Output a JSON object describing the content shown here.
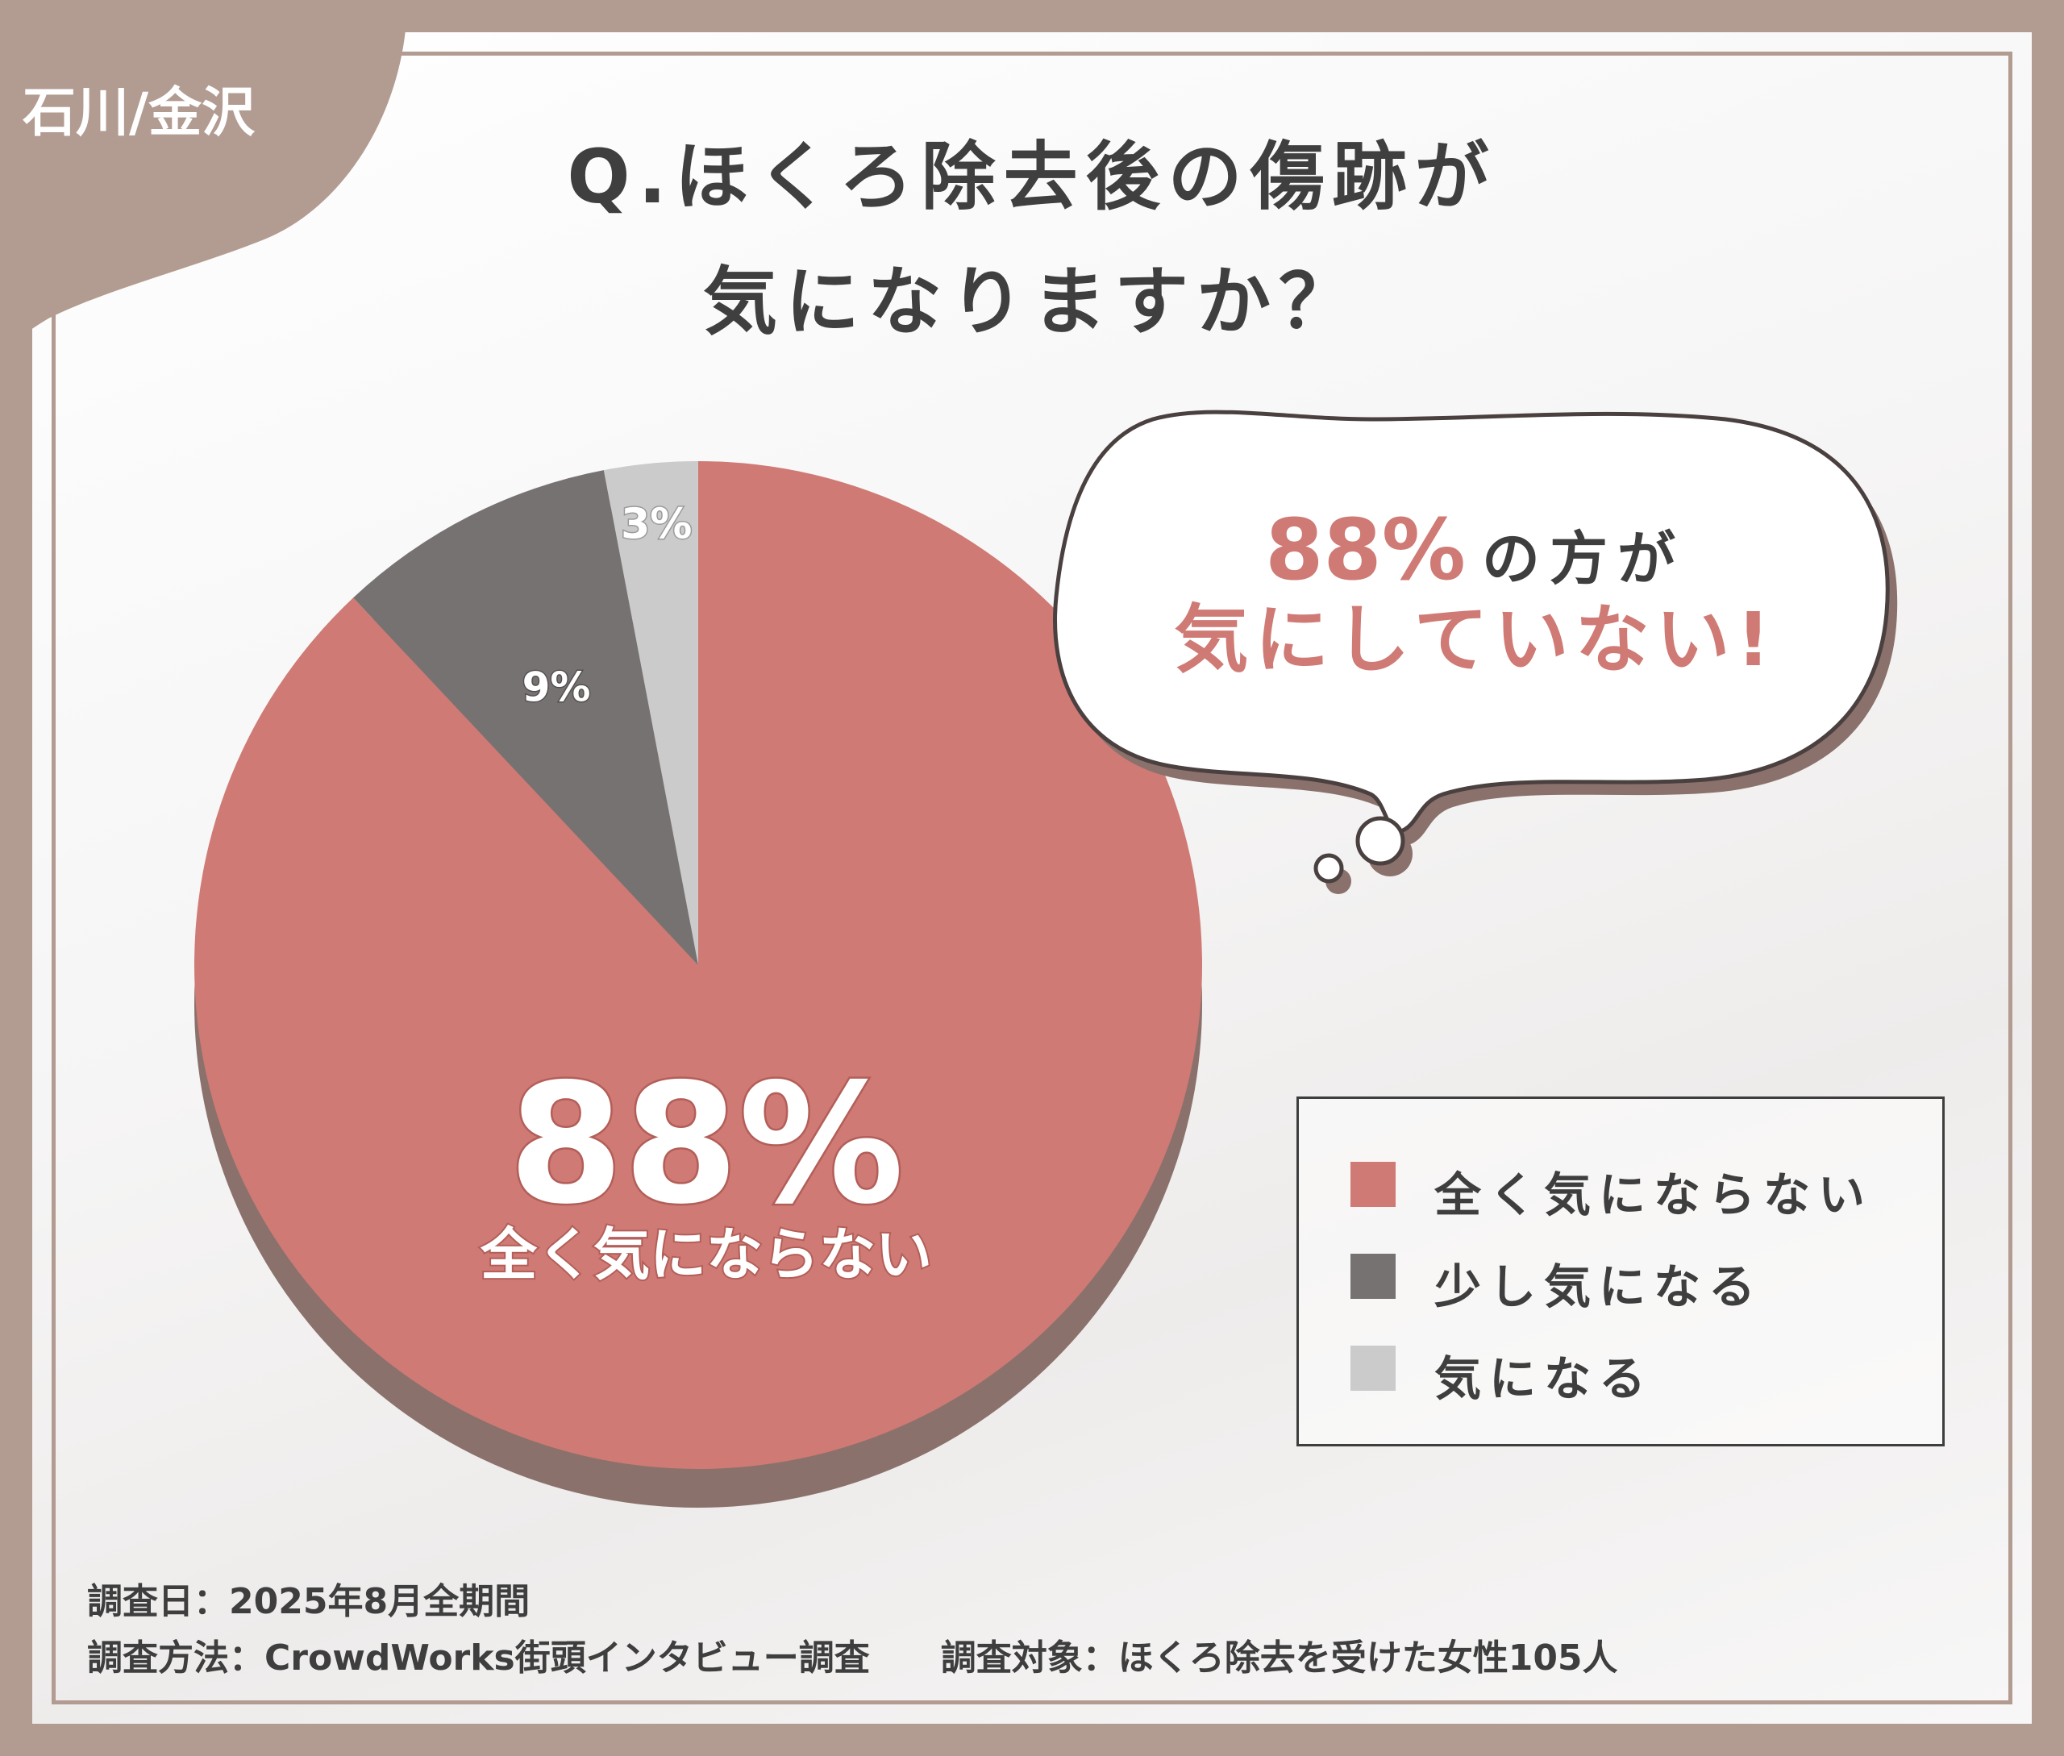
{
  "badge": {
    "label": "石川/金沢"
  },
  "title": {
    "line1": "Q.ほくろ除去後の傷跡が",
    "line2": "気になりますか？"
  },
  "callout": {
    "percent": "88%",
    "text1": "の方が",
    "text2": "気にしていない!"
  },
  "center_label": {
    "percent": "88%",
    "text": "全く気にならない"
  },
  "footer": {
    "line1": "調査日：2025年8月全期間",
    "line2": "調査方法：CrowdWorks街頭インタビュー調査　　調査対象：ほくろ除去を受けた女性105人"
  },
  "colors": {
    "accent": "#cf7a74",
    "dark": "#777272",
    "light": "#cbcbcb",
    "frame": "#b29b91",
    "shadow": "#8a716c"
  },
  "chart_data": {
    "type": "pie",
    "slices": [
      {
        "label": "全く気にならない",
        "value": 88,
        "display": "88%",
        "color": "#cf7a74"
      },
      {
        "label": "少し気になる",
        "value": 9,
        "display": "9%",
        "color": "#777272"
      },
      {
        "label": "気になる",
        "value": 3,
        "display": "3%",
        "color": "#cbcbcb"
      }
    ],
    "start_angle": "top, clockwise",
    "legend_position": "right"
  }
}
